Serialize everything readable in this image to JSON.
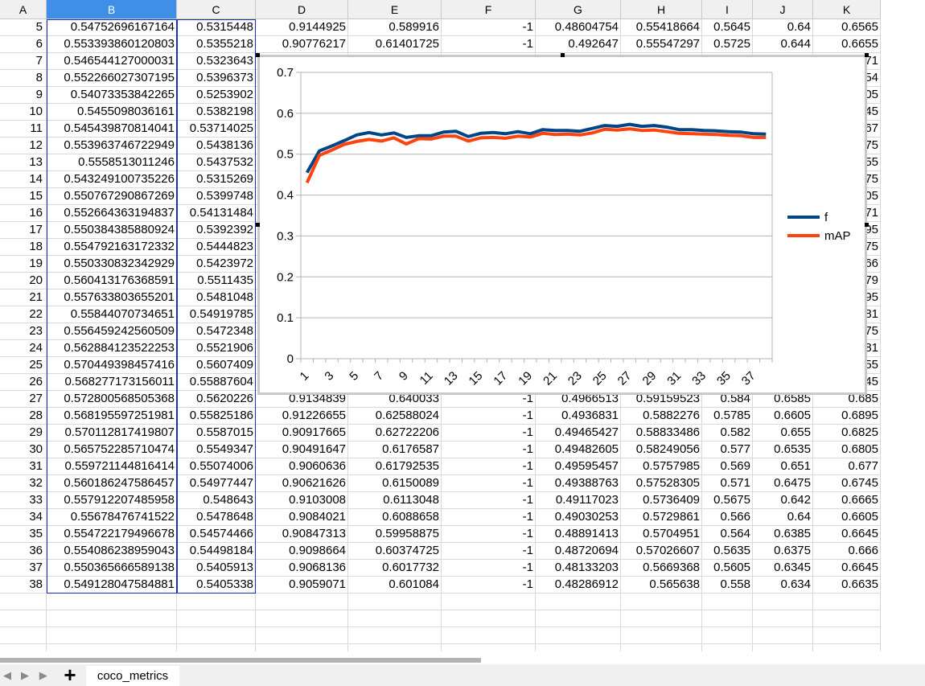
{
  "columns": [
    "A",
    "B",
    "C",
    "D",
    "E",
    "F",
    "G",
    "H",
    "I",
    "J",
    "K"
  ],
  "selected_column": "B",
  "rows": [
    {
      "num": "5",
      "cells": [
        "0.54752696167164",
        "0.5315448",
        "0.9144925",
        "0.589916",
        "-1",
        "0.48604754",
        "0.55418664",
        "0.5645",
        "0.64",
        "0.6565"
      ]
    },
    {
      "num": "6",
      "cells": [
        "0.553393860120803",
        "0.5355218",
        "0.90776217",
        "0.61401725",
        "-1",
        "0.492647",
        "0.55547297",
        "0.5725",
        "0.644",
        "0.6655"
      ]
    },
    {
      "num": "7",
      "cells": [
        "0.546544127000031",
        "0.5323643",
        "",
        "",
        "",
        "",
        "",
        "",
        "",
        "71"
      ]
    },
    {
      "num": "8",
      "cells": [
        "0.552266027307195",
        "0.5396373",
        "",
        "",
        "",
        "",
        "",
        "",
        "",
        "54"
      ]
    },
    {
      "num": "9",
      "cells": [
        "0.54073353842265",
        "0.5253902",
        "",
        "",
        "",
        "",
        "",
        "",
        "",
        "05"
      ]
    },
    {
      "num": "10",
      "cells": [
        "0.5455098036161",
        "0.5382198",
        "",
        "",
        "",
        "",
        "",
        "",
        "",
        "45"
      ]
    },
    {
      "num": "11",
      "cells": [
        "0.545439870814041",
        "0.53714025",
        "",
        "",
        "",
        "",
        "",
        "",
        "",
        "67"
      ]
    },
    {
      "num": "12",
      "cells": [
        "0.553963746722949",
        "0.5438136",
        "",
        "",
        "",
        "",
        "",
        "",
        "",
        "75"
      ]
    },
    {
      "num": "13",
      "cells": [
        "0.5558513011246",
        "0.5437532",
        "",
        "",
        "",
        "",
        "",
        "",
        "",
        "55"
      ]
    },
    {
      "num": "14",
      "cells": [
        "0.543249100735226",
        "0.5315269",
        "",
        "",
        "",
        "",
        "",
        "",
        "",
        "75"
      ]
    },
    {
      "num": "15",
      "cells": [
        "0.550767290867269",
        "0.5399748",
        "",
        "",
        "",
        "",
        "",
        "",
        "",
        "05"
      ]
    },
    {
      "num": "16",
      "cells": [
        "0.552664363194837",
        "0.54131484",
        "",
        "",
        "",
        "",
        "",
        "",
        "",
        "71"
      ]
    },
    {
      "num": "17",
      "cells": [
        "0.550384385880924",
        "0.5392392",
        "",
        "",
        "",
        "",
        "",
        "",
        "",
        "95"
      ]
    },
    {
      "num": "18",
      "cells": [
        "0.554792163172332",
        "0.5444823",
        "",
        "",
        "",
        "",
        "",
        "",
        "",
        "75"
      ]
    },
    {
      "num": "19",
      "cells": [
        "0.550330832342929",
        "0.5423972",
        "",
        "",
        "",
        "",
        "",
        "",
        "",
        "66"
      ]
    },
    {
      "num": "20",
      "cells": [
        "0.560413176368591",
        "0.5511435",
        "",
        "",
        "",
        "",
        "",
        "",
        "",
        "79"
      ]
    },
    {
      "num": "21",
      "cells": [
        "0.557633803655201",
        "0.5481048",
        "",
        "",
        "",
        "",
        "",
        "",
        "",
        "95"
      ]
    },
    {
      "num": "22",
      "cells": [
        "0.55844070734651",
        "0.54919785",
        "",
        "",
        "",
        "",
        "",
        "",
        "",
        "81"
      ]
    },
    {
      "num": "23",
      "cells": [
        "0.556459242560509",
        "0.5472348",
        "",
        "",
        "",
        "",
        "",
        "",
        "",
        "75"
      ]
    },
    {
      "num": "24",
      "cells": [
        "0.562884123522253",
        "0.5521906",
        "",
        "",
        "",
        "",
        "",
        "",
        "",
        "81"
      ]
    },
    {
      "num": "25",
      "cells": [
        "0.570449398457416",
        "0.5607409",
        "",
        "",
        "",
        "",
        "",
        "",
        "",
        "55"
      ]
    },
    {
      "num": "26",
      "cells": [
        "0.568277173156011",
        "0.55887604",
        "",
        "",
        "",
        "",
        "",
        "",
        "",
        "45"
      ]
    },
    {
      "num": "27",
      "cells": [
        "0.572800568505368",
        "0.5620226",
        "0.9134839",
        "0.640033",
        "-1",
        "0.4966513",
        "0.59159523",
        "0.584",
        "0.6585",
        "0.685"
      ]
    },
    {
      "num": "28",
      "cells": [
        "0.568195597251981",
        "0.55825186",
        "0.91226655",
        "0.62588024",
        "-1",
        "0.4936831",
        "0.5882276",
        "0.5785",
        "0.6605",
        "0.6895"
      ]
    },
    {
      "num": "29",
      "cells": [
        "0.570112817419807",
        "0.5587015",
        "0.90917665",
        "0.62722206",
        "-1",
        "0.49465427",
        "0.58833486",
        "0.582",
        "0.655",
        "0.6825"
      ]
    },
    {
      "num": "30",
      "cells": [
        "0.565752285710474",
        "0.5549347",
        "0.90491647",
        "0.6176587",
        "-1",
        "0.49482605",
        "0.58249056",
        "0.577",
        "0.6535",
        "0.6805"
      ]
    },
    {
      "num": "31",
      "cells": [
        "0.559721144816414",
        "0.55074006",
        "0.9060636",
        "0.61792535",
        "-1",
        "0.49595457",
        "0.5757985",
        "0.569",
        "0.651",
        "0.677"
      ]
    },
    {
      "num": "32",
      "cells": [
        "0.560186247586457",
        "0.54977447",
        "0.90621626",
        "0.6150089",
        "-1",
        "0.49388763",
        "0.57528305",
        "0.571",
        "0.6475",
        "0.6745"
      ]
    },
    {
      "num": "33",
      "cells": [
        "0.557912207485958",
        "0.548643",
        "0.9103008",
        "0.6113048",
        "-1",
        "0.49117023",
        "0.5736409",
        "0.5675",
        "0.642",
        "0.6665"
      ]
    },
    {
      "num": "34",
      "cells": [
        "0.55678476741522",
        "0.5478648",
        "0.9084021",
        "0.6088658",
        "-1",
        "0.49030253",
        "0.5729861",
        "0.566",
        "0.64",
        "0.6605"
      ]
    },
    {
      "num": "35",
      "cells": [
        "0.554722179496678",
        "0.54574466",
        "0.90847313",
        "0.59958875",
        "-1",
        "0.48891413",
        "0.5704951",
        "0.564",
        "0.6385",
        "0.6645"
      ]
    },
    {
      "num": "36",
      "cells": [
        "0.554086238959043",
        "0.54498184",
        "0.9098664",
        "0.60374725",
        "-1",
        "0.48720694",
        "0.57026607",
        "0.5635",
        "0.6375",
        "0.666"
      ]
    },
    {
      "num": "37",
      "cells": [
        "0.550365666589138",
        "0.5405913",
        "0.9068136",
        "0.6017732",
        "-1",
        "0.48133203",
        "0.5669368",
        "0.5605",
        "0.6345",
        "0.6645"
      ]
    },
    {
      "num": "38",
      "cells": [
        "0.549128047584881",
        "0.5405338",
        "0.9059071",
        "0.601084",
        "-1",
        "0.48286912",
        "0.565638",
        "0.558",
        "0.634",
        "0.6635"
      ]
    }
  ],
  "sheet_tab": "coco_metrics",
  "chart_data": {
    "type": "line",
    "x": [
      "1",
      "2",
      "3",
      "4",
      "5",
      "6",
      "7",
      "8",
      "9",
      "10",
      "11",
      "12",
      "13",
      "14",
      "15",
      "16",
      "17",
      "18",
      "19",
      "20",
      "21",
      "22",
      "23",
      "24",
      "25",
      "26",
      "27",
      "28",
      "29",
      "30",
      "31",
      "32",
      "33",
      "34",
      "35",
      "36",
      "37",
      "38"
    ],
    "x_tick_labels": [
      "1",
      "3",
      "5",
      "7",
      "9",
      "11",
      "13",
      "15",
      "17",
      "19",
      "21",
      "23",
      "25",
      "27",
      "29",
      "31",
      "33",
      "35",
      "37"
    ],
    "y_tick_labels": [
      "0",
      "0.1",
      "0.2",
      "0.3",
      "0.4",
      "0.5",
      "0.6",
      "0.7"
    ],
    "ylim": [
      0,
      0.7
    ],
    "grid": true,
    "legend_position": "right",
    "series": [
      {
        "name": "f",
        "color": "#004586",
        "values": [
          0.455,
          0.508,
          0.52,
          0.533,
          0.547,
          0.553,
          0.547,
          0.552,
          0.541,
          0.545,
          0.545,
          0.554,
          0.556,
          0.543,
          0.551,
          0.553,
          0.55,
          0.555,
          0.55,
          0.56,
          0.558,
          0.558,
          0.556,
          0.563,
          0.57,
          0.568,
          0.573,
          0.568,
          0.57,
          0.566,
          0.56,
          0.56,
          0.558,
          0.557,
          0.555,
          0.554,
          0.55,
          0.549
        ]
      },
      {
        "name": "mAP",
        "color": "#ff420e",
        "values": [
          0.43,
          0.497,
          0.51,
          0.524,
          0.531,
          0.536,
          0.532,
          0.54,
          0.525,
          0.538,
          0.537,
          0.544,
          0.544,
          0.532,
          0.54,
          0.541,
          0.539,
          0.544,
          0.542,
          0.551,
          0.548,
          0.549,
          0.547,
          0.552,
          0.561,
          0.559,
          0.562,
          0.558,
          0.559,
          0.555,
          0.551,
          0.55,
          0.549,
          0.548,
          0.546,
          0.545,
          0.541,
          0.541
        ]
      }
    ]
  }
}
